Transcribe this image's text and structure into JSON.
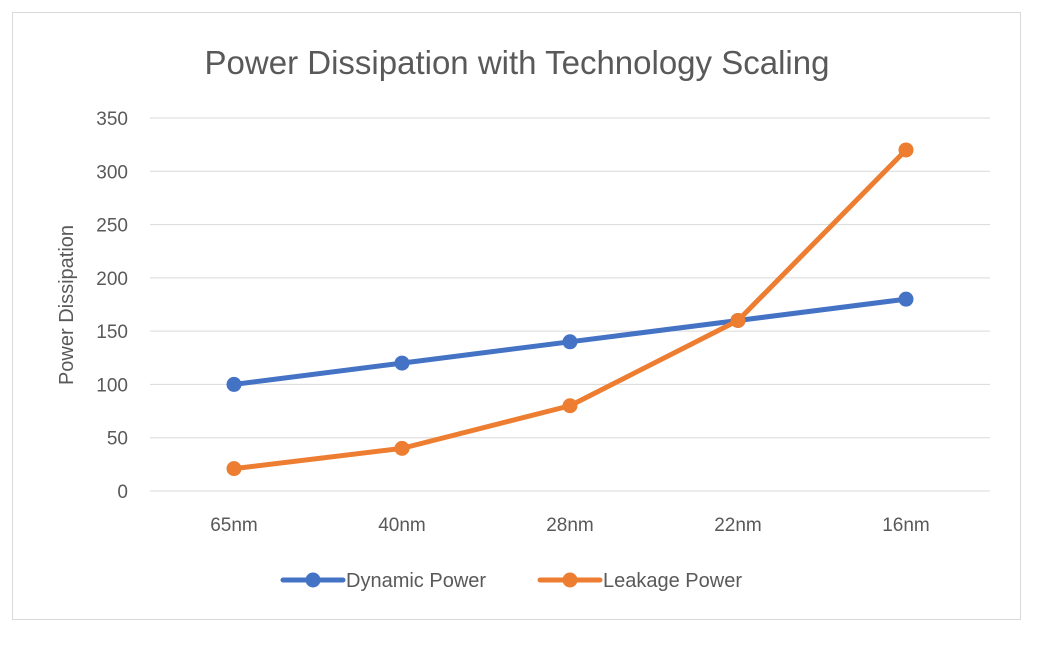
{
  "chart_data": {
    "type": "line",
    "title": "Power Dissipation with Technology Scaling",
    "xlabel": "",
    "ylabel": "Power Dissipation",
    "categories": [
      "65nm",
      "40nm",
      "28nm",
      "22nm",
      "16nm"
    ],
    "ylim": [
      0,
      350
    ],
    "yticks": [
      0,
      50,
      100,
      150,
      200,
      250,
      300,
      350
    ],
    "grid": true,
    "legend_position": "bottom",
    "series": [
      {
        "name": "Dynamic Power",
        "color": "#4472c4",
        "values": [
          100,
          120,
          140,
          160,
          180
        ]
      },
      {
        "name": "Leakage Power",
        "color": "#ed7d31",
        "values": [
          21,
          40,
          80,
          160,
          320
        ]
      }
    ]
  }
}
